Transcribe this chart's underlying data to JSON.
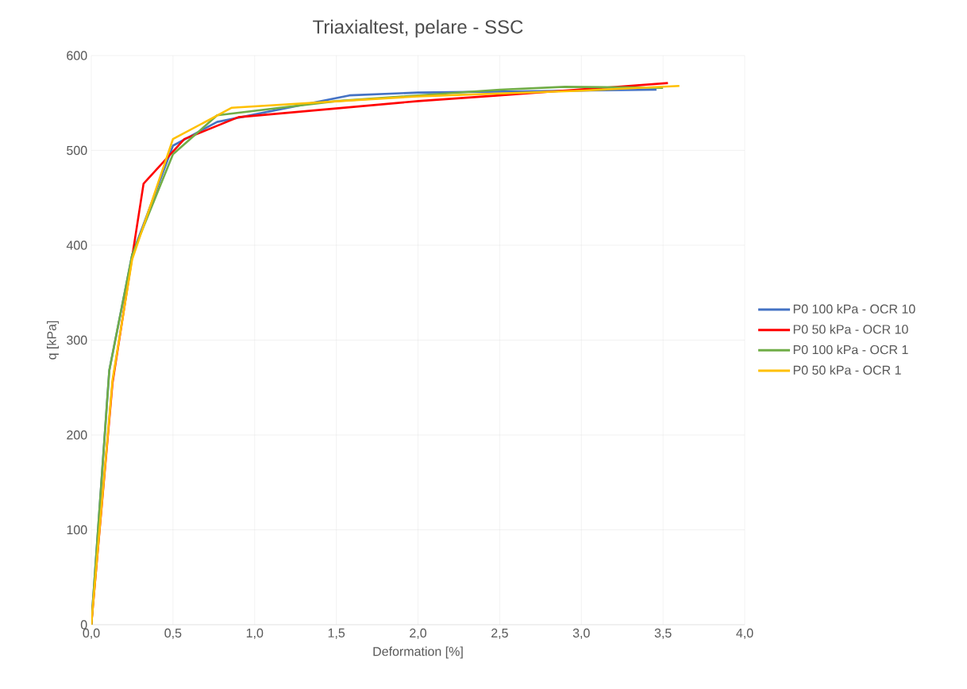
{
  "chart_data": {
    "type": "line",
    "title": "Triaxialtest, pelare - SSC",
    "xlabel": "Deformation [%]",
    "ylabel": "q [kPa]",
    "xlim": [
      0,
      4
    ],
    "ylim": [
      0,
      600
    ],
    "xticks": [
      {
        "value": 0,
        "label": "0,0"
      },
      {
        "value": 0.5,
        "label": "0,5"
      },
      {
        "value": 1,
        "label": "1,0"
      },
      {
        "value": 1.5,
        "label": "1,5"
      },
      {
        "value": 2,
        "label": "2,0"
      },
      {
        "value": 2.5,
        "label": "2,5"
      },
      {
        "value": 3,
        "label": "3,0"
      },
      {
        "value": 3.5,
        "label": "3,5"
      },
      {
        "value": 4,
        "label": "4,0"
      }
    ],
    "yticks": [
      0,
      100,
      200,
      300,
      400,
      500,
      600
    ],
    "grid": true,
    "legend": "right",
    "marker": "none",
    "line_style": "solid",
    "series": [
      {
        "name": "P0 100 kPa - OCR 10",
        "color": "#4472c4",
        "x": [
          0,
          0.11,
          0.25,
          0.5,
          0.77,
          1.58,
          2.0,
          3.46
        ],
        "values": [
          0,
          268,
          390,
          505,
          530,
          558,
          561,
          564
        ]
      },
      {
        "name": "P0 50 kPa - OCR 10",
        "color": "#ff0000",
        "x": [
          0,
          0.13,
          0.32,
          0.57,
          0.9,
          2.0,
          2.5,
          3.53
        ],
        "values": [
          0,
          255,
          465,
          512,
          535,
          552,
          558,
          571
        ]
      },
      {
        "name": "P0 100 kPa - OCR 1",
        "color": "#70ad47",
        "x": [
          0,
          0.11,
          0.25,
          0.5,
          0.77,
          1.5,
          2.5,
          2.9,
          3.5
        ],
        "values": [
          0,
          268,
          390,
          496,
          537,
          552,
          564,
          567,
          566
        ]
      },
      {
        "name": "P0 50 kPa - OCR 1",
        "color": "#ffc000",
        "x": [
          0,
          0.13,
          0.25,
          0.5,
          0.86,
          2.0,
          3.0,
          3.6
        ],
        "values": [
          0,
          258,
          385,
          512,
          545,
          557,
          563,
          568
        ]
      }
    ]
  }
}
